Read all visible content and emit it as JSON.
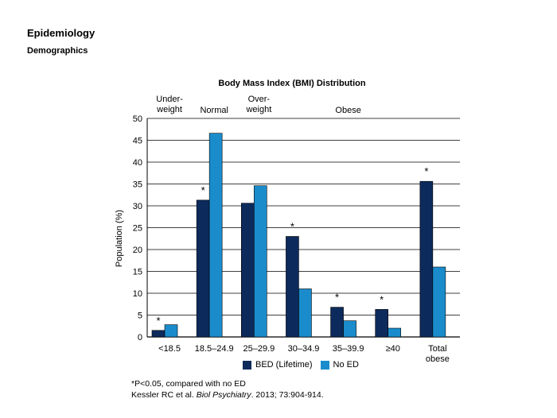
{
  "page": {
    "heading": "Epidemiology",
    "subheading": "Demographics"
  },
  "chart_data": {
    "type": "bar",
    "title": "Body Mass Index (BMI) Distribution",
    "ylabel": "Population (%)",
    "xlabel": "",
    "ylim": [
      0,
      50
    ],
    "yticks": [
      0,
      5,
      10,
      15,
      20,
      25,
      30,
      35,
      40,
      45,
      50
    ],
    "grid": true,
    "categories": [
      "<18.5",
      "18.5–24.9",
      "25–29.9",
      "30–34.9",
      "35–39.9",
      "≥40",
      "Total obese"
    ],
    "category_lines": [
      [
        "<18.5"
      ],
      [
        "18.5–24.9"
      ],
      [
        "25–29.9"
      ],
      [
        "30–34.9"
      ],
      [
        "35–39.9"
      ],
      [
        "≥40"
      ],
      [
        "Total",
        "obese"
      ]
    ],
    "series": [
      {
        "name": "BED (Lifetime)",
        "color": "#0d2a5c",
        "values": [
          1.5,
          31.3,
          30.6,
          23.0,
          6.8,
          6.3,
          35.6
        ]
      },
      {
        "name": "No ED",
        "color": "#1a8ccc",
        "values": [
          2.8,
          46.6,
          34.6,
          11.0,
          3.7,
          2.0,
          16.0
        ]
      }
    ],
    "significant": [
      true,
      true,
      false,
      true,
      true,
      true,
      true
    ],
    "significance_marker": "*",
    "group_labels": [
      {
        "lines": [
          "Under-",
          "weight"
        ],
        "anchor_category": 0
      },
      {
        "lines": [
          "Normal"
        ],
        "anchor_category": 1
      },
      {
        "lines": [
          "Over-",
          "weight"
        ],
        "anchor_category": 2
      },
      {
        "lines": [
          "Obese"
        ],
        "anchor_category": 4
      }
    ],
    "legend_position": "bottom"
  },
  "footnotes": {
    "significance": "*P<0.05, compared with no ED",
    "citation_pre": "Kessler RC et al. ",
    "citation_journal": "Biol Psychiatry",
    "citation_post": ". 2013; 73:904-914."
  }
}
